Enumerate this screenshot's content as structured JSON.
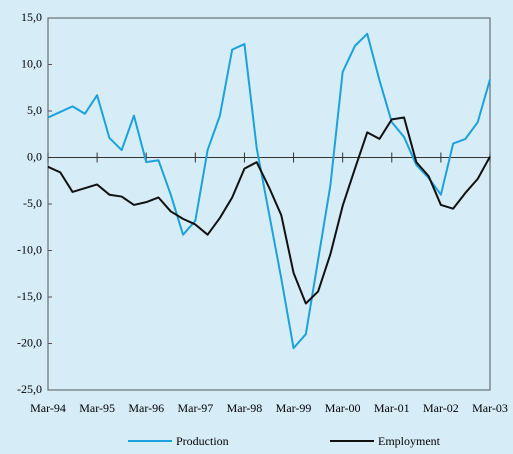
{
  "chart_data": {
    "type": "line",
    "categories": [
      "Mar-94",
      null,
      null,
      null,
      "Mar-95",
      null,
      null,
      null,
      "Mar-96",
      null,
      null,
      null,
      "Mar-97",
      null,
      null,
      null,
      "Mar-98",
      null,
      null,
      null,
      "Mar-99",
      null,
      null,
      null,
      "Mar-00",
      null,
      null,
      null,
      "Mar-01",
      null,
      null,
      null,
      "Mar-02",
      null,
      null,
      null,
      "Mar-03"
    ],
    "series": [
      {
        "name": "Production",
        "color": "#1ba1dc",
        "values": [
          4.3,
          4.9,
          5.5,
          4.7,
          6.7,
          2.1,
          0.8,
          4.5,
          -0.5,
          -0.3,
          -4.0,
          -8.3,
          -6.8,
          0.8,
          4.5,
          11.6,
          12.2,
          1.0,
          -6.0,
          -13.0,
          -20.5,
          -19.0,
          -11.0,
          -3.0,
          9.2,
          12.0,
          13.3,
          8.3,
          3.8,
          2.2,
          -0.8,
          -2.2,
          -4.0,
          1.5,
          2.0,
          3.8,
          8.4
        ]
      },
      {
        "name": "Employment",
        "color": "#111111",
        "values": [
          -1.0,
          -1.6,
          -3.7,
          -3.3,
          -2.9,
          -4.0,
          -4.2,
          -5.1,
          -4.8,
          -4.3,
          -5.8,
          -6.6,
          -7.2,
          -8.3,
          -6.5,
          -4.3,
          -1.2,
          -0.5,
          -3.2,
          -6.2,
          -12.4,
          -15.7,
          -14.4,
          -10.4,
          -5.2,
          -1.2,
          2.7,
          2.0,
          4.1,
          4.3,
          -0.5,
          -2.0,
          -5.1,
          -5.5,
          -3.8,
          -2.3,
          0.1
        ]
      }
    ],
    "ylim": [
      -25,
      15
    ],
    "yticks": [
      {
        "value": -25,
        "label": "-25,0"
      },
      {
        "value": -20,
        "label": "-20,0"
      },
      {
        "value": -15,
        "label": "-15,0"
      },
      {
        "value": -10,
        "label": "-10,0"
      },
      {
        "value": -5,
        "label": "-5,0"
      },
      {
        "value": 0,
        "label": "0,0"
      },
      {
        "value": 5,
        "label": "5,0"
      },
      {
        "value": 10,
        "label": "10,0"
      },
      {
        "value": 15,
        "label": "15,0"
      }
    ],
    "grid": false
  }
}
